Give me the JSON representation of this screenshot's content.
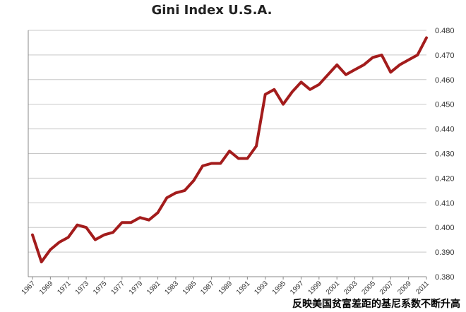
{
  "chart_data": {
    "type": "line",
    "title": "Gini Index U.S.A.",
    "xlabel": "",
    "ylabel": "",
    "ylim": [
      0.38,
      0.48
    ],
    "yticks": [
      "0.480",
      "0.470",
      "0.460",
      "0.450",
      "0.440",
      "0.430",
      "0.420",
      "0.410",
      "0.400",
      "0.390",
      "0.380"
    ],
    "xticks": [
      "1967",
      "1969",
      "1971",
      "1973",
      "1975",
      "1977",
      "1979",
      "1981",
      "1983",
      "1985",
      "1987",
      "1989",
      "1991",
      "1993",
      "1995",
      "1997",
      "1999",
      "2001",
      "2003",
      "2005",
      "2007",
      "2009",
      "2011"
    ],
    "grid": true,
    "line_color": "#a31c1c",
    "series": [
      {
        "x": [
          1967,
          1968,
          1969,
          1970,
          1971,
          1972,
          1973,
          1974,
          1975,
          1976,
          1977,
          1978,
          1979,
          1980,
          1981,
          1982,
          1983,
          1984,
          1985,
          1986,
          1987,
          1988,
          1989,
          1990,
          1991,
          1992,
          1993,
          1994,
          1995,
          1996,
          1997,
          1998,
          1999,
          2000,
          2001,
          2002,
          2003,
          2004,
          2005,
          2006,
          2007,
          2008,
          2009,
          2010,
          2011
        ],
        "values": [
          0.397,
          0.386,
          0.391,
          0.394,
          0.396,
          0.401,
          0.4,
          0.395,
          0.397,
          0.398,
          0.402,
          0.402,
          0.404,
          0.403,
          0.406,
          0.412,
          0.414,
          0.415,
          0.419,
          0.425,
          0.426,
          0.426,
          0.431,
          0.428,
          0.428,
          0.433,
          0.454,
          0.456,
          0.45,
          0.455,
          0.459,
          0.456,
          0.458,
          0.462,
          0.466,
          0.462,
          0.464,
          0.466,
          0.469,
          0.47,
          0.463,
          0.466,
          0.468,
          0.47,
          0.477
        ]
      }
    ]
  },
  "caption": "反映美国贫富差距的基尼系数不断升高"
}
